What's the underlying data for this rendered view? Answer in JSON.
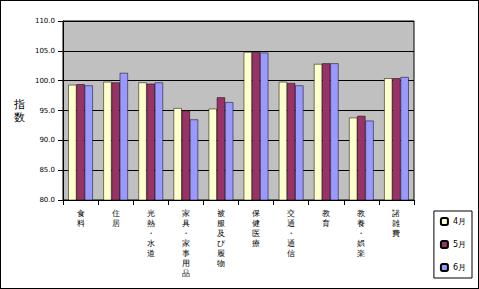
{
  "chart_data": {
    "type": "bar",
    "y_label": "指数",
    "categories": [
      "食料",
      "住居",
      "光熱・水道",
      "家具・家事用品",
      "被服及び履物",
      "保健医療",
      "交通・通信",
      "教育",
      "教養・娯楽",
      "諸雑費"
    ],
    "series": [
      {
        "name": "4月",
        "color": "#ffffcc",
        "values": [
          99.3,
          99.8,
          99.7,
          95.4,
          95.3,
          104.8,
          99.8,
          102.8,
          93.8,
          100.4
        ]
      },
      {
        "name": "5月",
        "color": "#993366",
        "values": [
          99.4,
          99.7,
          99.5,
          95.0,
          97.2,
          104.8,
          99.6,
          102.9,
          94.1,
          100.4
        ]
      },
      {
        "name": "6月",
        "color": "#9999ff",
        "values": [
          99.2,
          101.3,
          99.7,
          93.5,
          96.4,
          104.7,
          99.2,
          102.9,
          93.3,
          100.6
        ]
      }
    ],
    "ylim": [
      80,
      110
    ],
    "yticks": [
      {
        "value": 80,
        "label": "80.0"
      },
      {
        "value": 85,
        "label": "85.0"
      },
      {
        "value": 90,
        "label": "90.0"
      },
      {
        "value": 95,
        "label": "95.0"
      },
      {
        "value": 100,
        "label": "100.0"
      },
      {
        "value": 105,
        "label": "105.0"
      },
      {
        "value": 110,
        "label": "110.0"
      }
    ],
    "grid": true,
    "legend": "right"
  }
}
